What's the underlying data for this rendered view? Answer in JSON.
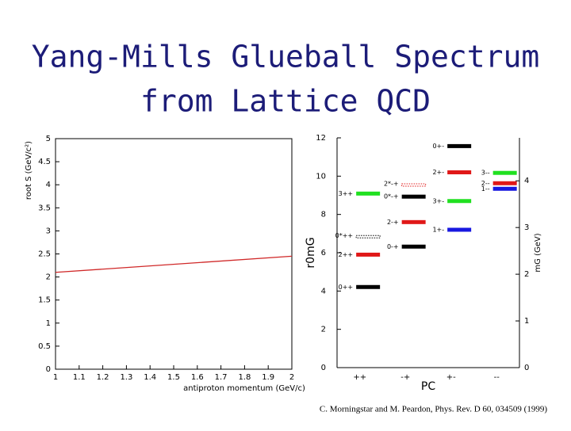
{
  "title_lines": [
    "Yang-Mills Glueball Spectrum",
    "from Lattice QCD"
  ],
  "citation": "C. Morningstar and M. Peardon, Phys. Rev. D 60, 034509 (1999)",
  "chart_data": [
    {
      "type": "line",
      "y_label": "root S (GeV/c²)",
      "x_label": "antiproton momentum (GeV/c)",
      "x": [
        1,
        2
      ],
      "series": [
        {
          "color": "#d02828",
          "values": [
            2.1,
            2.45
          ]
        }
      ],
      "xlim": [
        1,
        2
      ],
      "ylim": [
        0,
        5
      ],
      "xticks": [
        1,
        1.1,
        1.2,
        1.3,
        1.4,
        1.5,
        1.6,
        1.7,
        1.8,
        1.9,
        2
      ],
      "yticks": [
        0,
        0.5,
        1,
        1.5,
        2,
        2.5,
        3,
        3.5,
        4,
        4.5,
        5
      ]
    },
    {
      "type": "levels",
      "y_label": "r0mG",
      "y2_label": "mG (GeV)",
      "x_label": "PC",
      "categories": [
        "++",
        "-+",
        "+-",
        "--"
      ],
      "ylim": [
        0,
        12
      ],
      "yticks": [
        0,
        2,
        4,
        6,
        8,
        10,
        12
      ],
      "y2lim": [
        0,
        4.92
      ],
      "y2ticks": [
        0,
        1,
        2,
        3,
        4
      ],
      "states": [
        {
          "label": "0++",
          "category": "++",
          "value": 4.21,
          "color": "#000000"
        },
        {
          "label": "2++",
          "category": "++",
          "value": 5.9,
          "color": "#e01818"
        },
        {
          "label": "0*++",
          "category": "++",
          "value": 6.9,
          "color": "#000000",
          "dotted": true
        },
        {
          "label": "3++",
          "category": "++",
          "value": 9.09,
          "color": "#20e020"
        },
        {
          "label": "0-+",
          "category": "-+",
          "value": 6.32,
          "color": "#000000"
        },
        {
          "label": "2-+",
          "category": "-+",
          "value": 7.6,
          "color": "#e01818"
        },
        {
          "label": "0*-+",
          "category": "-+",
          "value": 8.93,
          "color": "#000000"
        },
        {
          "label": "2*-+",
          "category": "-+",
          "value": 9.6,
          "color": "#e01818",
          "dotted": true
        },
        {
          "label": "0+-",
          "category": "+-",
          "value": 11.57,
          "color": "#000000"
        },
        {
          "label": "2+-",
          "category": "+-",
          "value": 10.2,
          "color": "#e01818"
        },
        {
          "label": "3+-",
          "category": "+-",
          "value": 8.7,
          "color": "#20e020"
        },
        {
          "label": "1+-",
          "category": "+-",
          "value": 7.2,
          "color": "#1818e0"
        },
        {
          "label": "3--",
          "category": "--",
          "value": 10.17,
          "color": "#20e020"
        },
        {
          "label": "2--",
          "category": "--",
          "value": 9.63,
          "color": "#e01818"
        },
        {
          "label": "1--",
          "category": "--",
          "value": 9.34,
          "color": "#1818e0"
        }
      ]
    }
  ]
}
